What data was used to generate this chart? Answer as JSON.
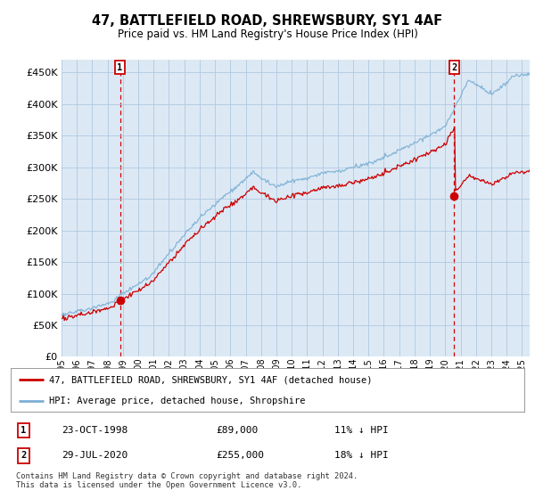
{
  "title": "47, BATTLEFIELD ROAD, SHREWSBURY, SY1 4AF",
  "subtitle": "Price paid vs. HM Land Registry's House Price Index (HPI)",
  "ytick_values": [
    0,
    50000,
    100000,
    150000,
    200000,
    250000,
    300000,
    350000,
    400000,
    450000
  ],
  "ylim": [
    0,
    470000
  ],
  "xlim_start": 1995.0,
  "xlim_end": 2025.5,
  "purchase1_x": 1998.81,
  "purchase1_y": 89000,
  "purchase2_x": 2020.58,
  "purchase2_y": 255000,
  "legend_line1": "47, BATTLEFIELD ROAD, SHREWSBURY, SY1 4AF (detached house)",
  "legend_line2": "HPI: Average price, detached house, Shropshire",
  "table_row1_num": "1",
  "table_row1_date": "23-OCT-1998",
  "table_row1_price": "£89,000",
  "table_row1_hpi": "11% ↓ HPI",
  "table_row2_num": "2",
  "table_row2_date": "29-JUL-2020",
  "table_row2_price": "£255,000",
  "table_row2_hpi": "18% ↓ HPI",
  "footnote": "Contains HM Land Registry data © Crown copyright and database right 2024.\nThis data is licensed under the Open Government Licence v3.0.",
  "vline1_x": 1998.81,
  "vline2_x": 2020.58,
  "line_color_red": "#cc0000",
  "line_color_blue": "#7bafd4",
  "vline_color": "#cc0000",
  "bg_plot": "#dce9f5",
  "bg_fig": "#ffffff",
  "grid_color": "#b0c8e0"
}
